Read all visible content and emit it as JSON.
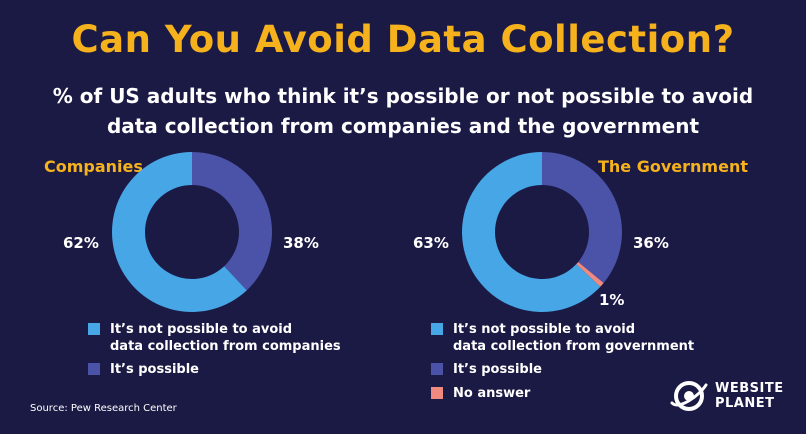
{
  "title": "Can You Avoid Data Collection?",
  "subtitle_line1": "% of US adults who think it’s possible or not possible to avoid",
  "subtitle_line2": "data collection from companies and the government",
  "colors": {
    "background": "#1b1a45",
    "title": "#f6b21c",
    "not_possible": "#47a6e6",
    "possible": "#4b53a8",
    "no_answer": "#f08a80"
  },
  "chart_data": [
    {
      "type": "pie",
      "title": "Companies",
      "labels": [
        "It’s not possible to avoid data collection from companies",
        "It’s possible"
      ],
      "values": [
        62,
        38
      ],
      "value_labels": [
        "62%",
        "38%"
      ],
      "colors": [
        "#47a6e6",
        "#4b53a8"
      ],
      "legend": [
        {
          "line1": "It’s not possible to avoid",
          "line2": "data collection from companies",
          "color": "#47a6e6"
        },
        {
          "line1": "It’s possible",
          "line2": "",
          "color": "#4b53a8"
        }
      ]
    },
    {
      "type": "pie",
      "title": "The Government",
      "labels": [
        "It’s not possible to avoid data collection from government",
        "It’s possible",
        "No answer"
      ],
      "values": [
        63,
        36,
        1
      ],
      "value_labels": [
        "63%",
        "36%",
        "1%"
      ],
      "colors": [
        "#47a6e6",
        "#4b53a8",
        "#f08a80"
      ],
      "legend": [
        {
          "line1": "It’s not possible to avoid",
          "line2": "data collection from government",
          "color": "#47a6e6"
        },
        {
          "line1": "It’s possible",
          "line2": "",
          "color": "#4b53a8"
        },
        {
          "line1": "No answer",
          "line2": "",
          "color": "#f08a80"
        }
      ]
    }
  ],
  "source": "Source: Pew Research Center",
  "logo": {
    "line1": "WEBSITE",
    "line2": "PLANET",
    "icon": "planet-icon"
  }
}
